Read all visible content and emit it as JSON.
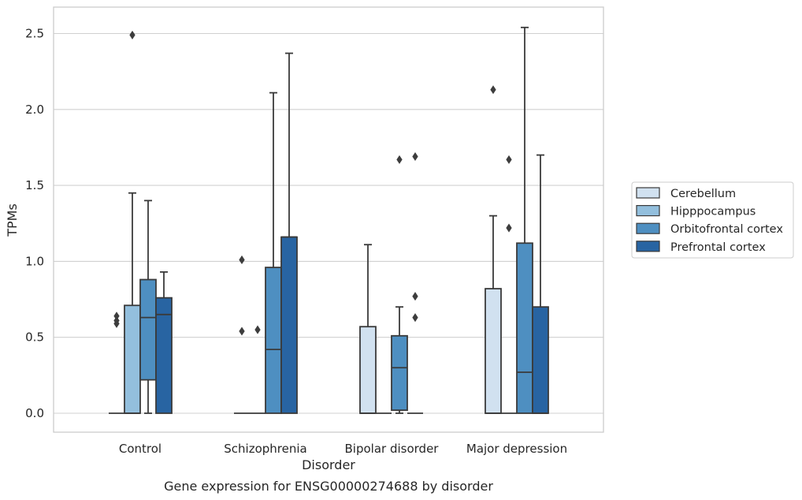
{
  "caption": "Gene expression for ENSG00000274688 by disorder",
  "chart_data": {
    "type": "box",
    "xlabel": "Disorder",
    "ylabel": "TPMs",
    "ylim": [
      -0.12,
      2.67
    ],
    "yticks": [
      "0.0",
      "0.5",
      "1.0",
      "1.5",
      "2.0",
      "2.5"
    ],
    "grid": true,
    "legend_position": "right",
    "categories": [
      "Control",
      "Schizophrenia",
      "Bipolar disorder",
      "Major depression"
    ],
    "series": [
      {
        "name": "Cerebellum",
        "color": "#d1e1f0",
        "boxes": [
          {
            "q1": 0,
            "median": 0,
            "q3": 0,
            "whisker_low": 0,
            "whisker_high": 0,
            "outliers": [
              0.59,
              0.61,
              0.64
            ]
          },
          {
            "q1": 0,
            "median": 0,
            "q3": 0,
            "whisker_low": 0,
            "whisker_high": 0,
            "outliers": [
              0.54,
              1.01
            ]
          },
          {
            "q1": 0,
            "median": 0,
            "q3": 0.57,
            "whisker_low": 0,
            "whisker_high": 1.11,
            "outliers": []
          },
          {
            "q1": 0,
            "median": 0,
            "q3": 0.82,
            "whisker_low": 0,
            "whisker_high": 1.3,
            "outliers": [
              2.13
            ]
          }
        ]
      },
      {
        "name": "Hipppocampus",
        "color": "#93bfdd",
        "boxes": [
          {
            "q1": 0,
            "median": 0,
            "q3": 0.71,
            "whisker_low": 0,
            "whisker_high": 1.45,
            "outliers": [
              2.49
            ]
          },
          {
            "q1": 0,
            "median": 0,
            "q3": 0,
            "whisker_low": 0,
            "whisker_high": 0,
            "outliers": [
              0.55
            ]
          },
          {
            "q1": 0,
            "median": 0,
            "q3": 0,
            "whisker_low": 0,
            "whisker_high": 0,
            "outliers": []
          },
          {
            "q1": 0,
            "median": 0,
            "q3": 0,
            "whisker_low": 0,
            "whisker_high": 0,
            "outliers": [
              1.22,
              1.67
            ]
          }
        ]
      },
      {
        "name": "Orbitofrontal cortex",
        "color": "#4e8fc1",
        "boxes": [
          {
            "q1": 0.22,
            "median": 0.63,
            "q3": 0.88,
            "whisker_low": 0,
            "whisker_high": 1.4,
            "outliers": []
          },
          {
            "q1": 0,
            "median": 0.42,
            "q3": 0.96,
            "whisker_low": 0,
            "whisker_high": 2.11,
            "outliers": []
          },
          {
            "q1": 0.02,
            "median": 0.3,
            "q3": 0.51,
            "whisker_low": 0,
            "whisker_high": 0.7,
            "outliers": [
              1.67
            ]
          },
          {
            "q1": 0,
            "median": 0.27,
            "q3": 1.12,
            "whisker_low": 0,
            "whisker_high": 2.54,
            "outliers": []
          }
        ]
      },
      {
        "name": "Prefrontal cortex",
        "color": "#2864a2",
        "boxes": [
          {
            "q1": 0,
            "median": 0.65,
            "q3": 0.76,
            "whisker_low": 0,
            "whisker_high": 0.93,
            "outliers": []
          },
          {
            "q1": 0,
            "median": 1.16,
            "q3": 1.16,
            "whisker_low": 0,
            "whisker_high": 2.37,
            "outliers": []
          },
          {
            "q1": 0,
            "median": 0,
            "q3": 0,
            "whisker_low": 0,
            "whisker_high": 0,
            "outliers": [
              0.63,
              0.77,
              1.69
            ]
          },
          {
            "q1": 0,
            "median": 0,
            "q3": 0.7,
            "whisker_low": 0,
            "whisker_high": 1.7,
            "outliers": []
          }
        ]
      }
    ]
  }
}
